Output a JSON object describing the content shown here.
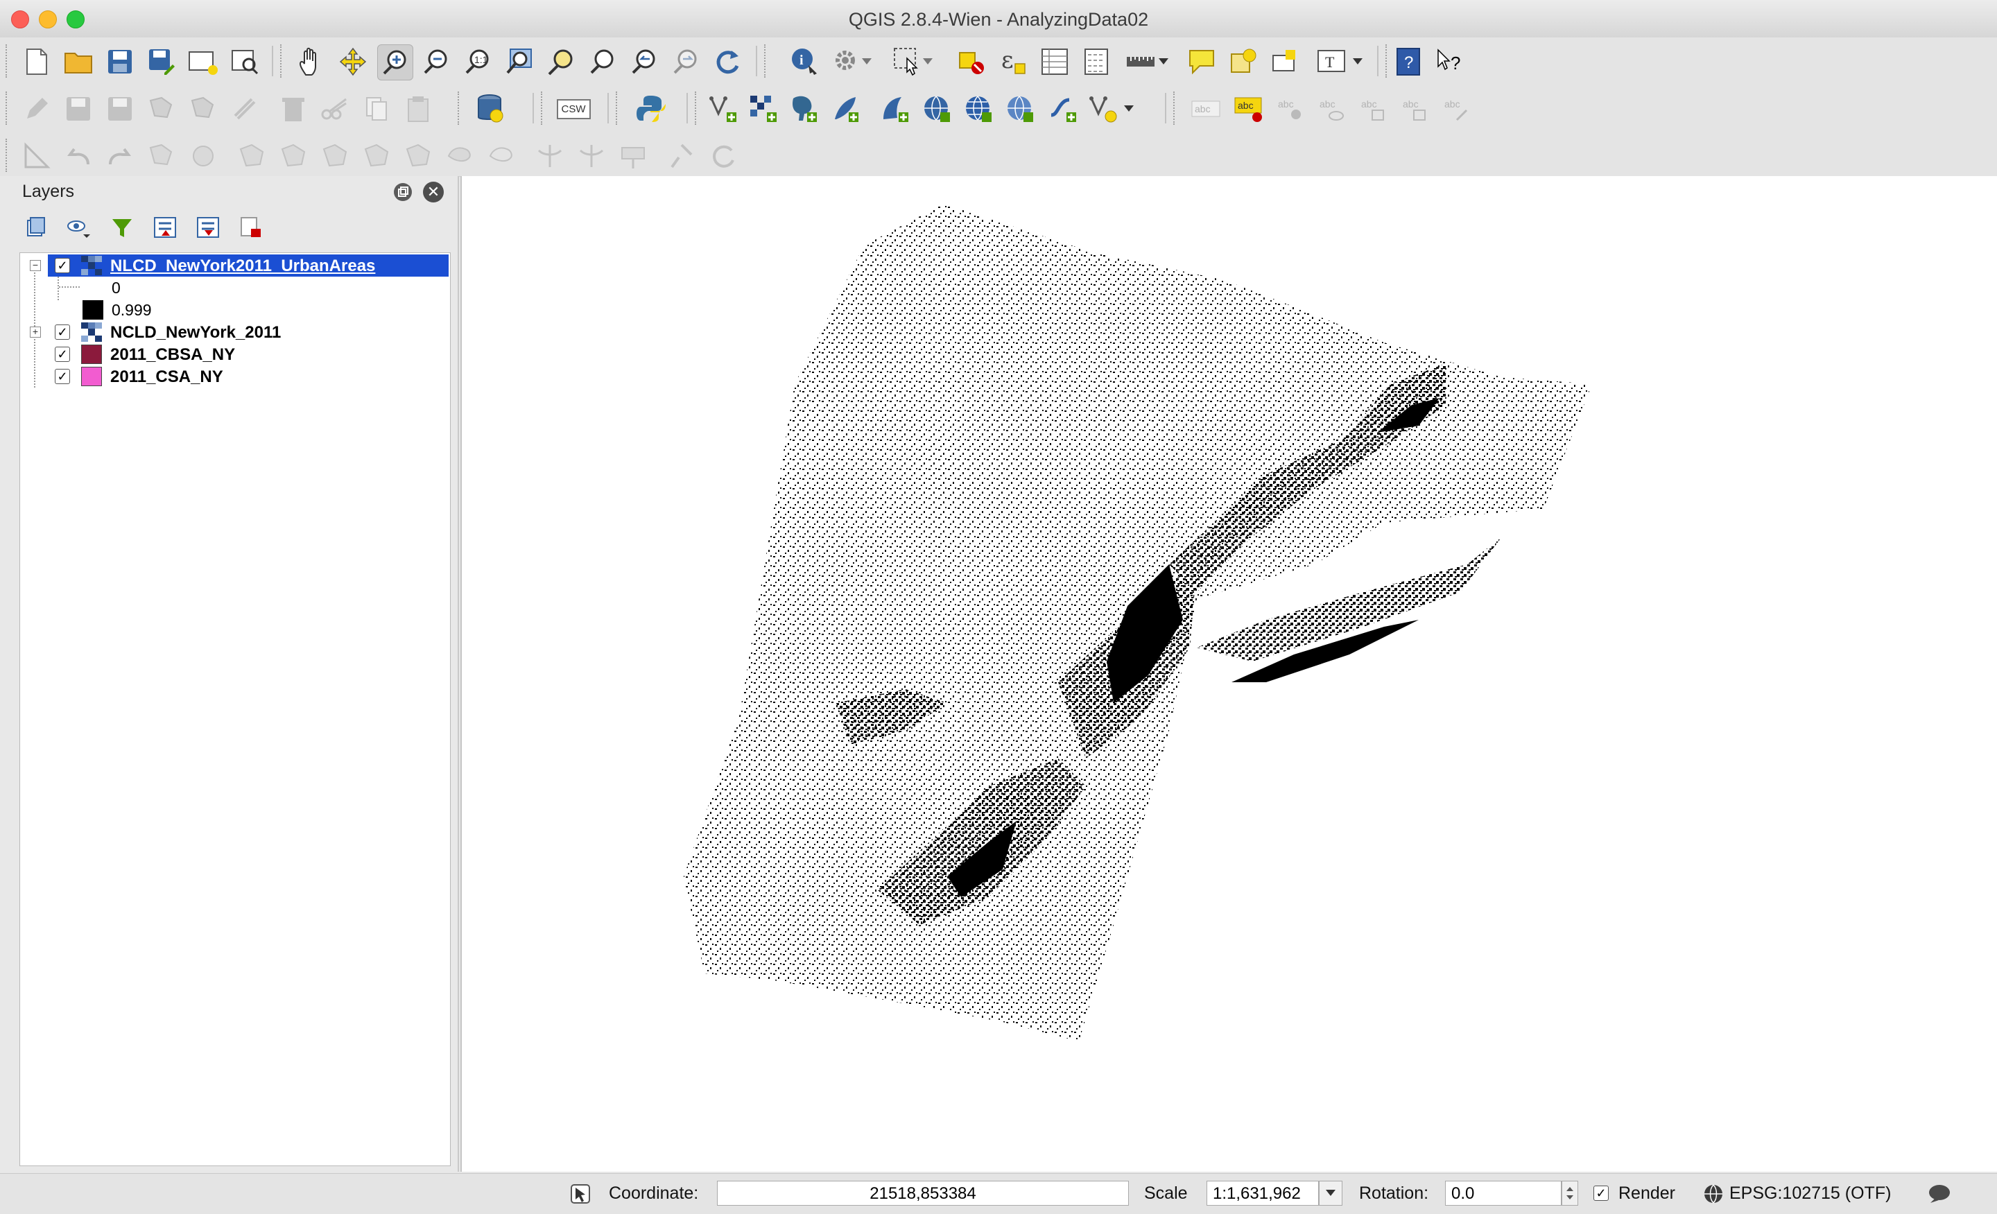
{
  "window": {
    "title": "QGIS 2.8.4-Wien - AnalyzingData02"
  },
  "layers_panel": {
    "title": "Layers",
    "layers": [
      {
        "name": "NLCD_NewYork2011_UrbanAreas",
        "checked": true,
        "selected": true,
        "expanded": true,
        "legend": [
          {
            "label": "0"
          },
          {
            "label": "0.999"
          }
        ]
      },
      {
        "name": "NCLD_NewYork_2011",
        "checked": true,
        "selected": false,
        "expanded": false
      },
      {
        "name": "2011_CBSA_NY",
        "checked": true,
        "color": "#8b1a3c"
      },
      {
        "name": "2011_CSA_NY",
        "checked": true,
        "color": "#f25cd0"
      }
    ]
  },
  "toolbar_buttons": {
    "csw_label": "CSW",
    "abc": "abc"
  },
  "statusbar": {
    "coordinate_label": "Coordinate:",
    "coordinate_value": "21518,853384",
    "scale_label": "Scale",
    "scale_value": "1:1,631,962",
    "rotation_label": "Rotation:",
    "rotation_value": "0.0",
    "render_label": "Render",
    "render_checked": true,
    "crs_label": "EPSG:102715 (OTF)"
  },
  "colors": {
    "selection": "#1b4fd3",
    "map_feature": "#000000"
  }
}
